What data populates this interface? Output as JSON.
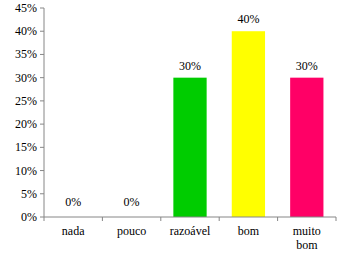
{
  "chart_data": {
    "type": "bar",
    "categories": [
      "nada",
      "pouco",
      "razoável",
      "bom",
      "muito bom"
    ],
    "values": [
      0,
      0,
      30,
      40,
      30
    ],
    "value_labels": [
      "0%",
      "0%",
      "30%",
      "40%",
      "30%"
    ],
    "colors": [
      "#4472c4",
      "#c0504d",
      "#00cc00",
      "#ffff00",
      "#ff0066"
    ],
    "ylim": [
      0,
      45
    ],
    "yticks": [
      {
        "value": 0,
        "label": "0%"
      },
      {
        "value": 5,
        "label": "5%"
      },
      {
        "value": 10,
        "label": "10%"
      },
      {
        "value": 15,
        "label": "15%"
      },
      {
        "value": 20,
        "label": "20%"
      },
      {
        "value": 25,
        "label": "25%"
      },
      {
        "value": 30,
        "label": "30%"
      },
      {
        "value": 35,
        "label": "35%"
      },
      {
        "value": 40,
        "label": "40%"
      },
      {
        "value": 45,
        "label": "45%"
      }
    ],
    "grid": false,
    "data_labels": true
  }
}
